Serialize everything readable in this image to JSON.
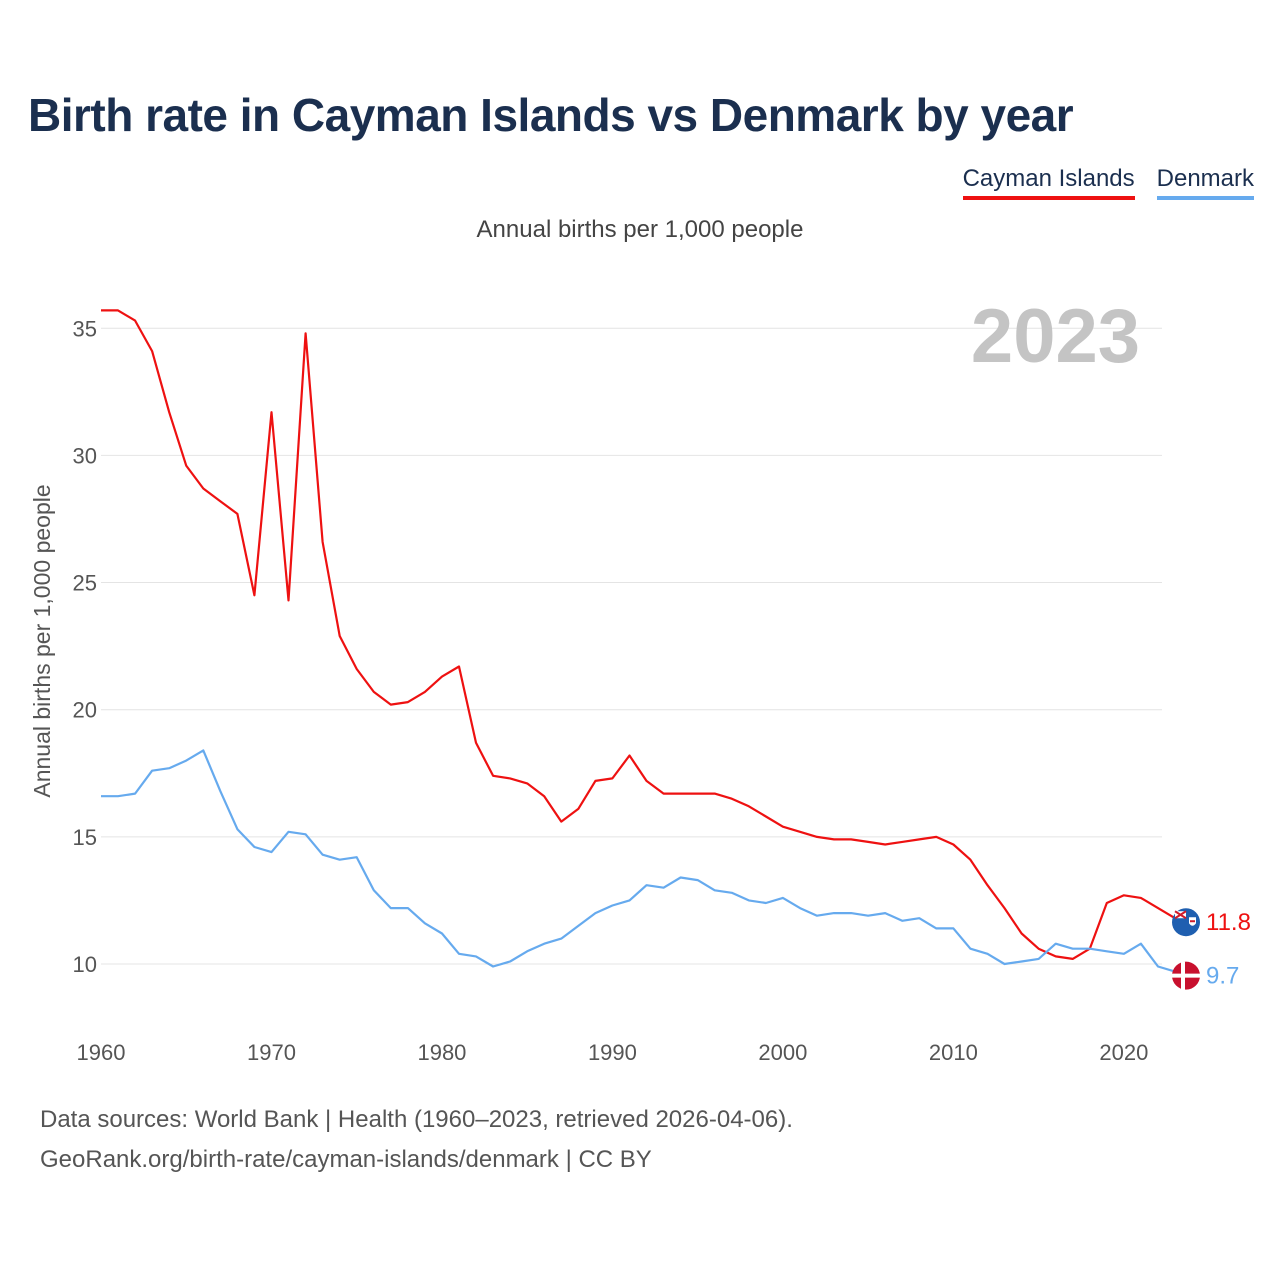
{
  "title": "Birth rate in Cayman Islands vs Denmark by year",
  "subtitle": "Annual births per 1,000 people",
  "year_watermark": "2023",
  "footer": {
    "line1": "Data sources: World Bank | Health (1960–2023, retrieved 2026-04-06).",
    "line2": "GeoRank.org/birth-rate/cayman-islands/denmark | CC BY"
  },
  "legend": [
    {
      "label": "Cayman Islands",
      "color": "#ee1111"
    },
    {
      "label": "Denmark",
      "color": "#66aaee"
    }
  ],
  "chart_data": {
    "type": "line",
    "title": "Birth rate in Cayman Islands vs Denmark by year",
    "ylabel": "Annual births per 1,000 people",
    "xlabel": "",
    "xlim": [
      1960,
      2023
    ],
    "ylim": [
      7.6,
      37.0
    ],
    "yticks": [
      10,
      15,
      20,
      25,
      30,
      35
    ],
    "xticks": [
      1960,
      1970,
      1980,
      1990,
      2000,
      2010,
      2020
    ],
    "grid": true,
    "x": [
      1960,
      1961,
      1962,
      1963,
      1964,
      1965,
      1966,
      1967,
      1968,
      1969,
      1970,
      1971,
      1972,
      1973,
      1974,
      1975,
      1976,
      1977,
      1978,
      1979,
      1980,
      1981,
      1982,
      1983,
      1984,
      1985,
      1986,
      1987,
      1988,
      1989,
      1990,
      1991,
      1992,
      1993,
      1994,
      1995,
      1996,
      1997,
      1998,
      1999,
      2000,
      2001,
      2002,
      2003,
      2004,
      2005,
      2006,
      2007,
      2008,
      2009,
      2010,
      2011,
      2012,
      2013,
      2014,
      2015,
      2016,
      2017,
      2018,
      2019,
      2020,
      2021,
      2022,
      2023
    ],
    "series": [
      {
        "name": "Cayman Islands",
        "color": "#ee1111",
        "end_label": "11.8",
        "values": [
          35.7,
          35.7,
          35.3,
          34.1,
          31.7,
          29.6,
          28.7,
          28.2,
          27.7,
          24.5,
          31.7,
          24.3,
          34.8,
          26.6,
          22.9,
          21.6,
          20.7,
          20.2,
          20.3,
          20.7,
          21.3,
          21.7,
          18.7,
          17.4,
          17.3,
          17.1,
          16.6,
          15.6,
          16.1,
          17.2,
          17.3,
          18.2,
          17.2,
          16.7,
          16.7,
          16.7,
          16.7,
          16.5,
          16.2,
          15.8,
          15.4,
          15.2,
          15.0,
          14.9,
          14.9,
          14.8,
          14.7,
          14.8,
          14.9,
          15.0,
          14.7,
          14.1,
          13.1,
          12.2,
          11.2,
          10.6,
          10.3,
          10.2,
          10.6,
          12.4,
          12.7,
          12.6,
          12.2,
          11.8
        ]
      },
      {
        "name": "Denmark",
        "color": "#66aaee",
        "end_label": "9.7",
        "values": [
          16.6,
          16.6,
          16.7,
          17.6,
          17.7,
          18.0,
          18.4,
          16.8,
          15.3,
          14.6,
          14.4,
          15.2,
          15.1,
          14.3,
          14.1,
          14.2,
          12.9,
          12.2,
          12.2,
          11.6,
          11.2,
          10.4,
          10.3,
          9.9,
          10.1,
          10.5,
          10.8,
          11.0,
          11.5,
          12.0,
          12.3,
          12.5,
          13.1,
          13.0,
          13.4,
          13.3,
          12.9,
          12.8,
          12.5,
          12.4,
          12.6,
          12.2,
          11.9,
          12.0,
          12.0,
          11.9,
          12.0,
          11.7,
          11.8,
          11.4,
          11.4,
          10.6,
          10.4,
          10.0,
          10.1,
          10.2,
          10.8,
          10.6,
          10.6,
          10.5,
          10.4,
          10.8,
          9.9,
          9.7
        ]
      }
    ]
  }
}
